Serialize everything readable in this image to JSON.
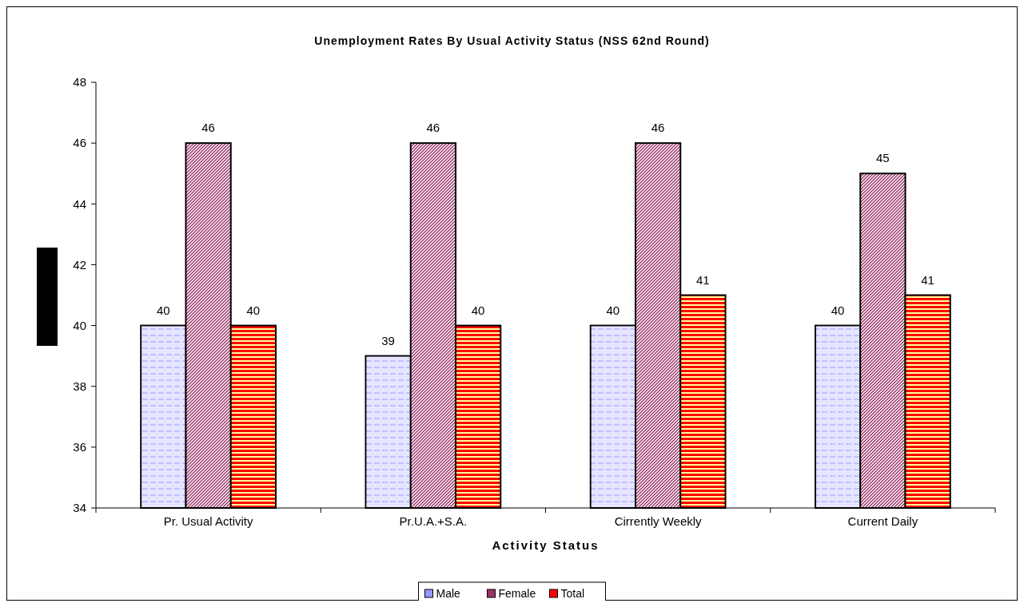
{
  "chart_data": {
    "type": "bar",
    "title": "Unemployment Rates By Usual Activity Status (NSS 62nd Round)",
    "xlabel": "Activity Status",
    "categories": [
      "Pr. Usual Activity",
      "Pr.U.A.+S.A.",
      "Cirrently Weekly",
      "Current Daily"
    ],
    "series": [
      {
        "name": "Male",
        "color": "#9999ff",
        "values": [
          40,
          39,
          40,
          40
        ]
      },
      {
        "name": "Female",
        "color": "#993366",
        "values": [
          46,
          46,
          46,
          45
        ]
      },
      {
        "name": "Total",
        "color": "#ff0000",
        "values": [
          40,
          40,
          41,
          41
        ]
      }
    ],
    "ylim": [
      34,
      48
    ],
    "yticks": [
      34,
      36,
      38,
      40,
      42,
      44,
      46,
      48
    ],
    "data_labels": true,
    "legend": "bottom",
    "grid": false
  }
}
